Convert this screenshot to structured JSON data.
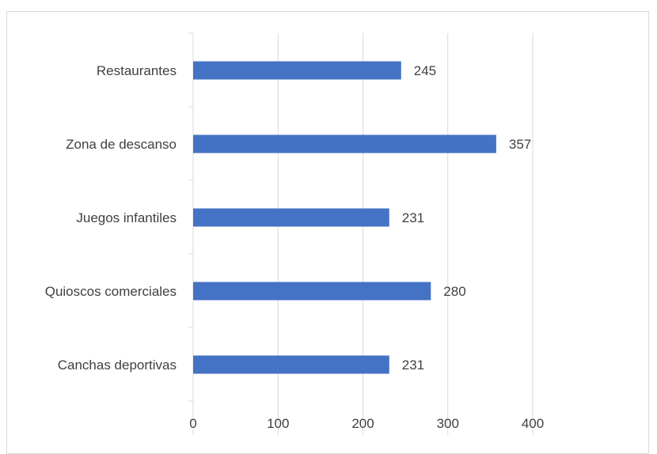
{
  "chart_data": {
    "type": "bar",
    "orientation": "horizontal",
    "categories": [
      "Restaurantes",
      "Zona de descanso",
      "Juegos infantiles",
      "Quioscos comerciales",
      "Canchas deportivas"
    ],
    "values": [
      245,
      357,
      231,
      280,
      231
    ],
    "xlim": [
      0,
      500
    ],
    "x_ticks": [
      0,
      100,
      200,
      300,
      400
    ],
    "x_tick_labels": [
      "0",
      "100",
      "200",
      "300",
      "400"
    ],
    "title": "",
    "xlabel": "",
    "ylabel": "",
    "grid": "vertical",
    "legend": "none",
    "data_labels": true,
    "bar_color": "#4472C4",
    "gridline_color": "#d9d9d9",
    "text_color": "#404040"
  }
}
